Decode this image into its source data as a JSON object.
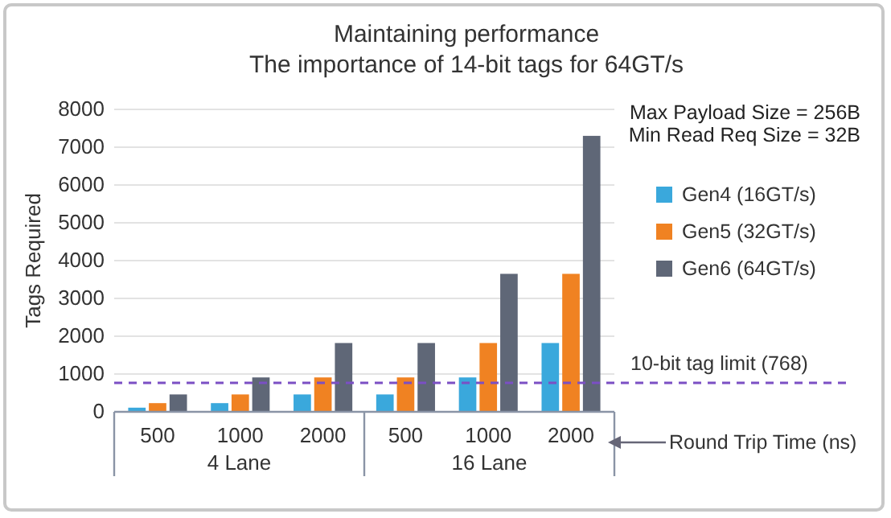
{
  "chart_data": {
    "type": "bar",
    "title": "Maintaining performance",
    "subtitle": "The importance of 14-bit tags for 64GT/s",
    "ylabel": "Tags Required",
    "xlabel": "Round Trip Time (ns)",
    "categories": [
      "500",
      "1000",
      "2000",
      "500",
      "1000",
      "2000"
    ],
    "series": [
      {
        "name": "Gen4 (16GT/s)",
        "color": "#3aa8dc",
        "values": [
          110,
          230,
          460,
          460,
          910,
          1820
        ]
      },
      {
        "name": "Gen5 (32GT/s)",
        "color": "#f08222",
        "values": [
          230,
          460,
          910,
          910,
          1820,
          3650
        ]
      },
      {
        "name": "Gen6 (64GT/s)",
        "color": "#5f6777",
        "values": [
          460,
          910,
          1820,
          1820,
          3650,
          7300
        ]
      }
    ],
    "ylim": [
      0,
      8000
    ],
    "yticks": [
      0,
      1000,
      2000,
      3000,
      4000,
      5000,
      6000,
      7000,
      8000
    ],
    "grid": "y",
    "legend": "right",
    "ref_lines": [
      {
        "axis": "y",
        "value": 768,
        "label": "10-bit tag limit (768)",
        "color": "#7b4fc4",
        "line_style": "dashed"
      }
    ],
    "annotations": [
      "Max Payload Size = 256B",
      "Min Read Req Size = 32B",
      "4 Lane",
      "16 Lane"
    ]
  }
}
